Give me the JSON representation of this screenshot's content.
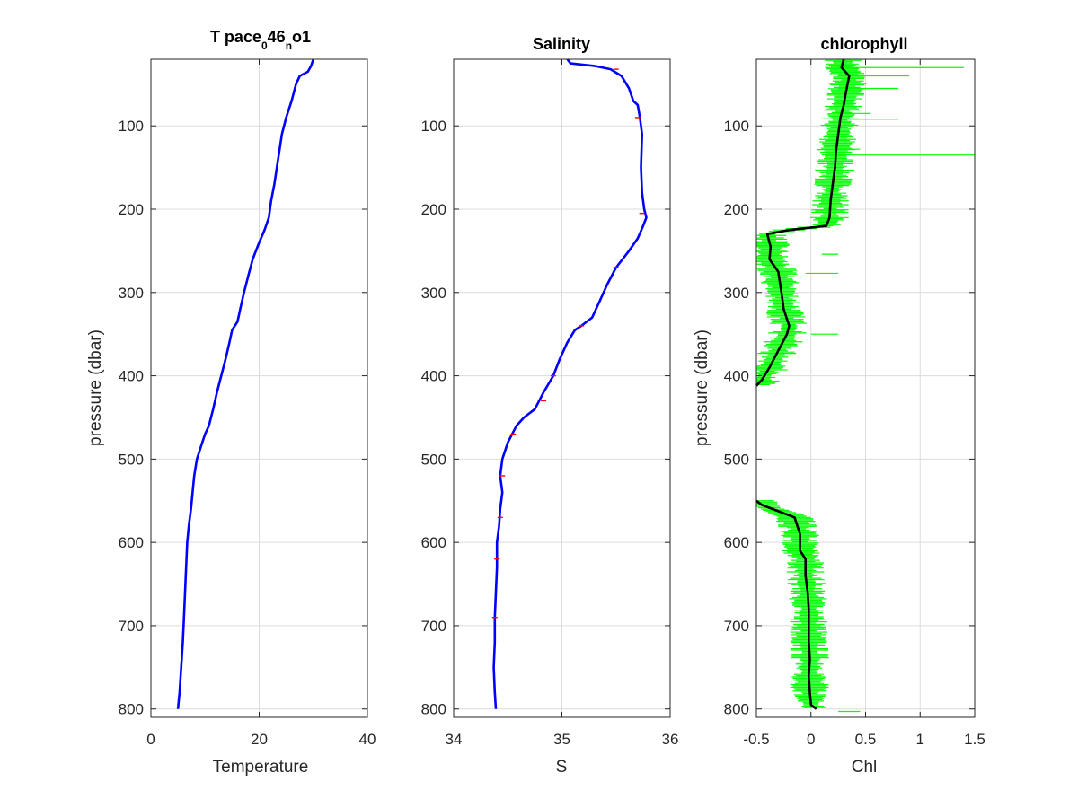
{
  "chart_data": [
    {
      "type": "line",
      "title": "T pace",
      "title_sub1": "0",
      "title_mid": "46",
      "title_sub2": "n",
      "title_tail": "o1",
      "xlabel": "Temperature",
      "ylabel": "pressure (dbar)",
      "xlim": [
        0,
        40
      ],
      "ylim": [
        20,
        810
      ],
      "y_reversed": true,
      "grid": true,
      "xticks": [
        0,
        20,
        40
      ],
      "yticks": [
        100,
        200,
        300,
        400,
        500,
        600,
        700,
        800
      ],
      "series": [
        {
          "color": "#0000ff",
          "points": [
            [
              30.0,
              20
            ],
            [
              29.6,
              28
            ],
            [
              29.0,
              35
            ],
            [
              27.5,
              40
            ],
            [
              26.8,
              50
            ],
            [
              26.0,
              70
            ],
            [
              25.0,
              90
            ],
            [
              24.2,
              110
            ],
            [
              23.5,
              140
            ],
            [
              22.8,
              170
            ],
            [
              22.2,
              190
            ],
            [
              21.8,
              210
            ],
            [
              21.0,
              225
            ],
            [
              20.0,
              240
            ],
            [
              18.8,
              260
            ],
            [
              18.0,
              280
            ],
            [
              17.2,
              300
            ],
            [
              16.5,
              320
            ],
            [
              16.0,
              335
            ],
            [
              15.0,
              345
            ],
            [
              14.5,
              360
            ],
            [
              13.8,
              380
            ],
            [
              13.0,
              400
            ],
            [
              12.2,
              420
            ],
            [
              11.5,
              440
            ],
            [
              10.7,
              460
            ],
            [
              10.0,
              470
            ],
            [
              9.5,
              480
            ],
            [
              9.0,
              490
            ],
            [
              8.5,
              500
            ],
            [
              8.0,
              520
            ],
            [
              7.7,
              540
            ],
            [
              7.4,
              560
            ],
            [
              7.0,
              580
            ],
            [
              6.7,
              600
            ],
            [
              6.5,
              630
            ],
            [
              6.3,
              660
            ],
            [
              6.1,
              690
            ],
            [
              5.9,
              720
            ],
            [
              5.6,
              750
            ],
            [
              5.3,
              780
            ],
            [
              5.0,
              800
            ]
          ]
        }
      ]
    },
    {
      "type": "line",
      "title": "Salinity",
      "xlabel": "S",
      "ylabel": "",
      "xlim": [
        34,
        36
      ],
      "ylim": [
        20,
        810
      ],
      "y_reversed": true,
      "grid": true,
      "xticks": [
        34,
        35,
        36
      ],
      "yticks": [
        100,
        200,
        300,
        400,
        500,
        600,
        700,
        800
      ],
      "series": [
        {
          "color": "#0000ff",
          "points": [
            [
              35.05,
              20
            ],
            [
              35.08,
              25
            ],
            [
              35.3,
              28
            ],
            [
              35.45,
              32
            ],
            [
              35.55,
              40
            ],
            [
              35.62,
              55
            ],
            [
              35.66,
              70
            ],
            [
              35.7,
              75
            ],
            [
              35.72,
              90
            ],
            [
              35.74,
              110
            ],
            [
              35.73,
              150
            ],
            [
              35.74,
              180
            ],
            [
              35.76,
              200
            ],
            [
              35.78,
              210
            ],
            [
              35.75,
              220
            ],
            [
              35.7,
              235
            ],
            [
              35.62,
              250
            ],
            [
              35.5,
              270
            ],
            [
              35.42,
              290
            ],
            [
              35.35,
              310
            ],
            [
              35.28,
              330
            ],
            [
              35.18,
              340
            ],
            [
              35.12,
              345
            ],
            [
              35.05,
              360
            ],
            [
              34.98,
              380
            ],
            [
              34.92,
              400
            ],
            [
              34.83,
              420
            ],
            [
              34.75,
              440
            ],
            [
              34.65,
              450
            ],
            [
              34.58,
              460
            ],
            [
              34.5,
              480
            ],
            [
              34.45,
              500
            ],
            [
              34.43,
              520
            ],
            [
              34.45,
              540
            ],
            [
              34.43,
              560
            ],
            [
              34.42,
              580
            ],
            [
              34.4,
              600
            ],
            [
              34.4,
              630
            ],
            [
              34.39,
              660
            ],
            [
              34.38,
              690
            ],
            [
              34.38,
              720
            ],
            [
              34.37,
              750
            ],
            [
              34.38,
              780
            ],
            [
              34.39,
              800
            ]
          ]
        }
      ]
    },
    {
      "type": "line",
      "title": "chlorophyll",
      "xlabel": "Chl",
      "ylabel": "pressure (dbar)",
      "xlim": [
        -0.5,
        1.5
      ],
      "ylim": [
        20,
        810
      ],
      "y_reversed": true,
      "grid": true,
      "xticks": [
        -0.5,
        0,
        0.5,
        1,
        1.5
      ],
      "yticks": [
        100,
        200,
        300,
        400,
        500,
        600,
        700,
        800
      ],
      "series": [
        {
          "name": "",
          "color": "#000000",
          "segments": [
            [
              [
                0.3,
                20
              ],
              [
                0.28,
                30
              ],
              [
                0.35,
                40
              ],
              [
                0.32,
                60
              ],
              [
                0.3,
                75
              ],
              [
                0.27,
                90
              ],
              [
                0.25,
                110
              ],
              [
                0.23,
                130
              ],
              [
                0.22,
                150
              ],
              [
                0.2,
                170
              ],
              [
                0.18,
                190
              ],
              [
                0.17,
                210
              ],
              [
                0.14,
                220
              ],
              [
                -0.2,
                225
              ],
              [
                -0.4,
                230
              ],
              [
                -0.37,
                245
              ],
              [
                -0.38,
                260
              ],
              [
                -0.3,
                275
              ],
              [
                -0.27,
                300
              ],
              [
                -0.25,
                320
              ],
              [
                -0.2,
                340
              ],
              [
                -0.22,
                350
              ],
              [
                -0.3,
                370
              ],
              [
                -0.38,
                390
              ],
              [
                -0.45,
                405
              ],
              [
                -0.5,
                412
              ]
            ],
            [
              [
                -0.5,
                550
              ],
              [
                -0.45,
                555
              ],
              [
                -0.35,
                560
              ],
              [
                -0.15,
                570
              ],
              [
                -0.1,
                590
              ],
              [
                -0.1,
                610
              ],
              [
                -0.05,
                620
              ],
              [
                -0.05,
                640
              ],
              [
                -0.03,
                660
              ],
              [
                -0.02,
                680
              ],
              [
                -0.02,
                700
              ],
              [
                -0.02,
                720
              ],
              [
                -0.01,
                740
              ],
              [
                -0.02,
                760
              ],
              [
                -0.01,
                780
              ],
              [
                0.0,
                795
              ],
              [
                0.05,
                800
              ]
            ]
          ]
        }
      ]
    },
    {
      "type": "line",
      "title": "",
      "notes_source_axis": 3,
      "series": [
        {
          "name": "",
          "color": "#00ff00"
        }
      ]
    }
  ]
}
